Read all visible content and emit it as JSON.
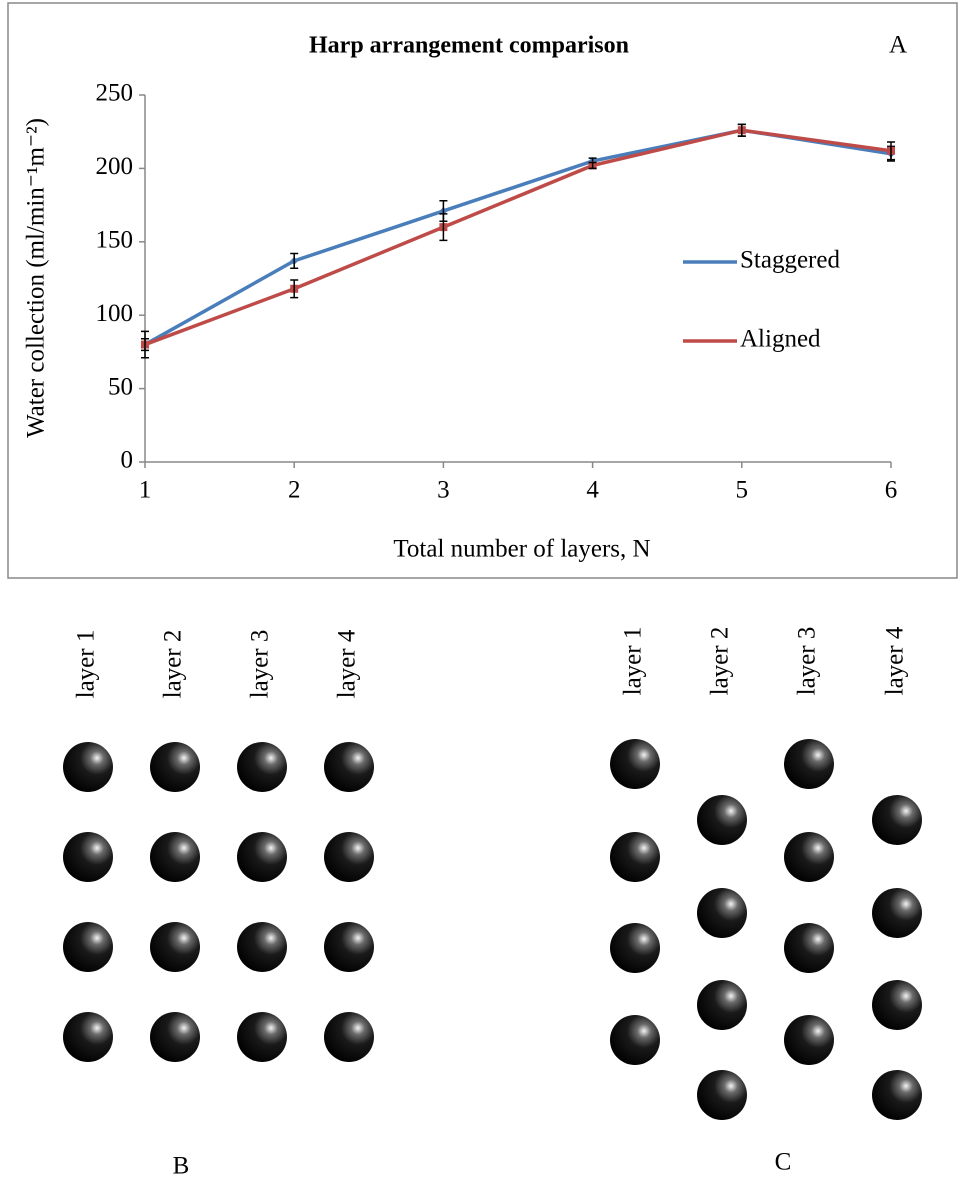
{
  "chart_data": {
    "type": "line",
    "title": "Harp arrangement comparison",
    "annotation": "A",
    "x_label": "Total number of layers, N",
    "y_label": "Water collection (ml/min⁻¹m⁻²)",
    "x": [
      1,
      2,
      3,
      4,
      5,
      6
    ],
    "xlim": [
      1,
      6
    ],
    "xticks": [
      1,
      2,
      3,
      4,
      5,
      6
    ],
    "ylim": [
      0,
      250
    ],
    "yticks": [
      0,
      50,
      100,
      150,
      200,
      250
    ],
    "grid": false,
    "legend": "right",
    "series": [
      {
        "name": "Staggered",
        "color": "#4a7ebb",
        "values": [
          80,
          137,
          171,
          205,
          226,
          210
        ],
        "errors": [
          4,
          5,
          7,
          2,
          4,
          5
        ]
      },
      {
        "name": "Aligned",
        "color": "#be4b48",
        "values": [
          80,
          118,
          160,
          202,
          226,
          212
        ],
        "errors": [
          9,
          6,
          9,
          2,
          4,
          6
        ]
      }
    ]
  },
  "panels": {
    "b": {
      "label": "B",
      "layers": [
        "layer 1",
        "layer 2",
        "layer 3",
        "layer 4"
      ]
    },
    "c": {
      "label": "C",
      "layers": [
        "layer 1",
        "layer 2",
        "layer 3",
        "layer 4"
      ]
    }
  }
}
